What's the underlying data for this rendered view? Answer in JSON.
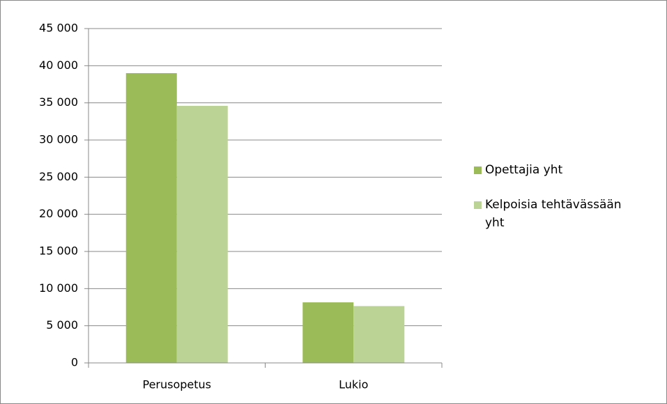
{
  "chart_data": {
    "type": "bar",
    "categories": [
      "Perusopetus",
      "Lukio"
    ],
    "series": [
      {
        "name": "Opettajia yht",
        "color": "#9bbb59",
        "values": [
          39000,
          8150
        ]
      },
      {
        "name": "Kelpoisia tehtävässään yht",
        "color": "#bcd396",
        "values": [
          34600,
          7650
        ]
      }
    ],
    "ylim": [
      0,
      45000
    ],
    "yticks": [
      0,
      {
        "value": 5000,
        "label": "5 000"
      },
      {
        "value": 10000,
        "label": "10 000"
      },
      {
        "value": 15000,
        "label": "15 000"
      },
      {
        "value": 20000,
        "label": "20 000"
      },
      {
        "value": 25000,
        "label": "25 000"
      },
      {
        "value": 30000,
        "label": "30 000"
      },
      {
        "value": 35000,
        "label": "35 000"
      },
      {
        "value": 40000,
        "label": "40 000"
      },
      {
        "value": 45000,
        "label": "45 000"
      }
    ],
    "grid": true,
    "legend": "right"
  }
}
